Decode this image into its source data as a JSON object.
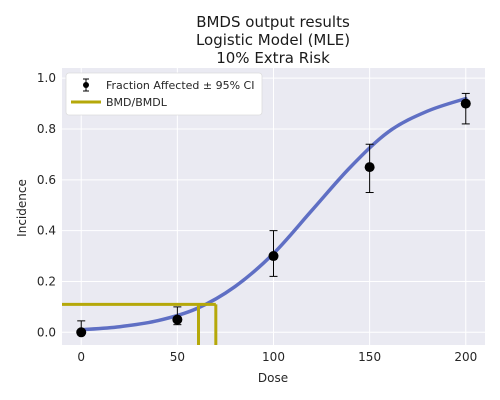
{
  "chart_data": {
    "type": "scatter",
    "title": [
      "BMDS output results",
      "Logistic Model (MLE)",
      "10% Extra Risk"
    ],
    "xlabel": "Dose",
    "ylabel": "Incidence",
    "xlim": [
      -10,
      210
    ],
    "ylim": [
      -0.05,
      1.04
    ],
    "xticks": [
      0,
      50,
      100,
      150,
      200
    ],
    "yticks": [
      0.0,
      0.2,
      0.4,
      0.6,
      0.8,
      1.0
    ],
    "grid": true,
    "legend_position": "top-left",
    "series": [
      {
        "name": "Fraction Affected ± 95% CI",
        "kind": "errorbar",
        "color": "#000000",
        "x": [
          0,
          50,
          100,
          150,
          200
        ],
        "y": [
          0.0,
          0.05,
          0.3,
          0.65,
          0.9
        ],
        "ci_low": [
          0.0,
          0.03,
          0.22,
          0.55,
          0.82
        ],
        "ci_high": [
          0.045,
          0.1,
          0.4,
          0.74,
          0.94
        ]
      },
      {
        "kind": "fitted-curve",
        "color": "#5f6fc4",
        "x": [
          0,
          20,
          40,
          60,
          80,
          100,
          120,
          140,
          160,
          180,
          200
        ],
        "y": [
          0.01,
          0.022,
          0.046,
          0.093,
          0.18,
          0.31,
          0.48,
          0.65,
          0.79,
          0.87,
          0.92
        ]
      },
      {
        "name": "BMD/BMDL",
        "kind": "bmd-lines",
        "color": "#b5a80a",
        "bmr": 0.11,
        "bmd": 70,
        "bmdl": 61
      }
    ]
  }
}
